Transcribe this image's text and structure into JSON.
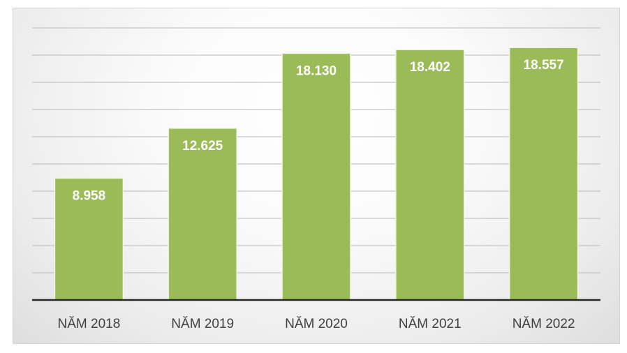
{
  "chart_data": {
    "type": "bar",
    "categories": [
      "NĂM 2018",
      "NĂM 2019",
      "NĂM 2020",
      "NĂM 2021",
      "NĂM 2022"
    ],
    "values": [
      8958,
      12625,
      18130,
      18402,
      18557
    ],
    "value_labels": [
      "8.958",
      "12.625",
      "18.130",
      "18.402",
      "18.557"
    ],
    "title": "",
    "xlabel": "",
    "ylabel": "",
    "ylim": [
      0,
      20000
    ],
    "grid": true,
    "legend": "none",
    "bar_color": "#9bbb59",
    "bar_edge_color": "#f2f7e8",
    "axis_color": "#262626",
    "grid_color": "#b8b8b8"
  }
}
